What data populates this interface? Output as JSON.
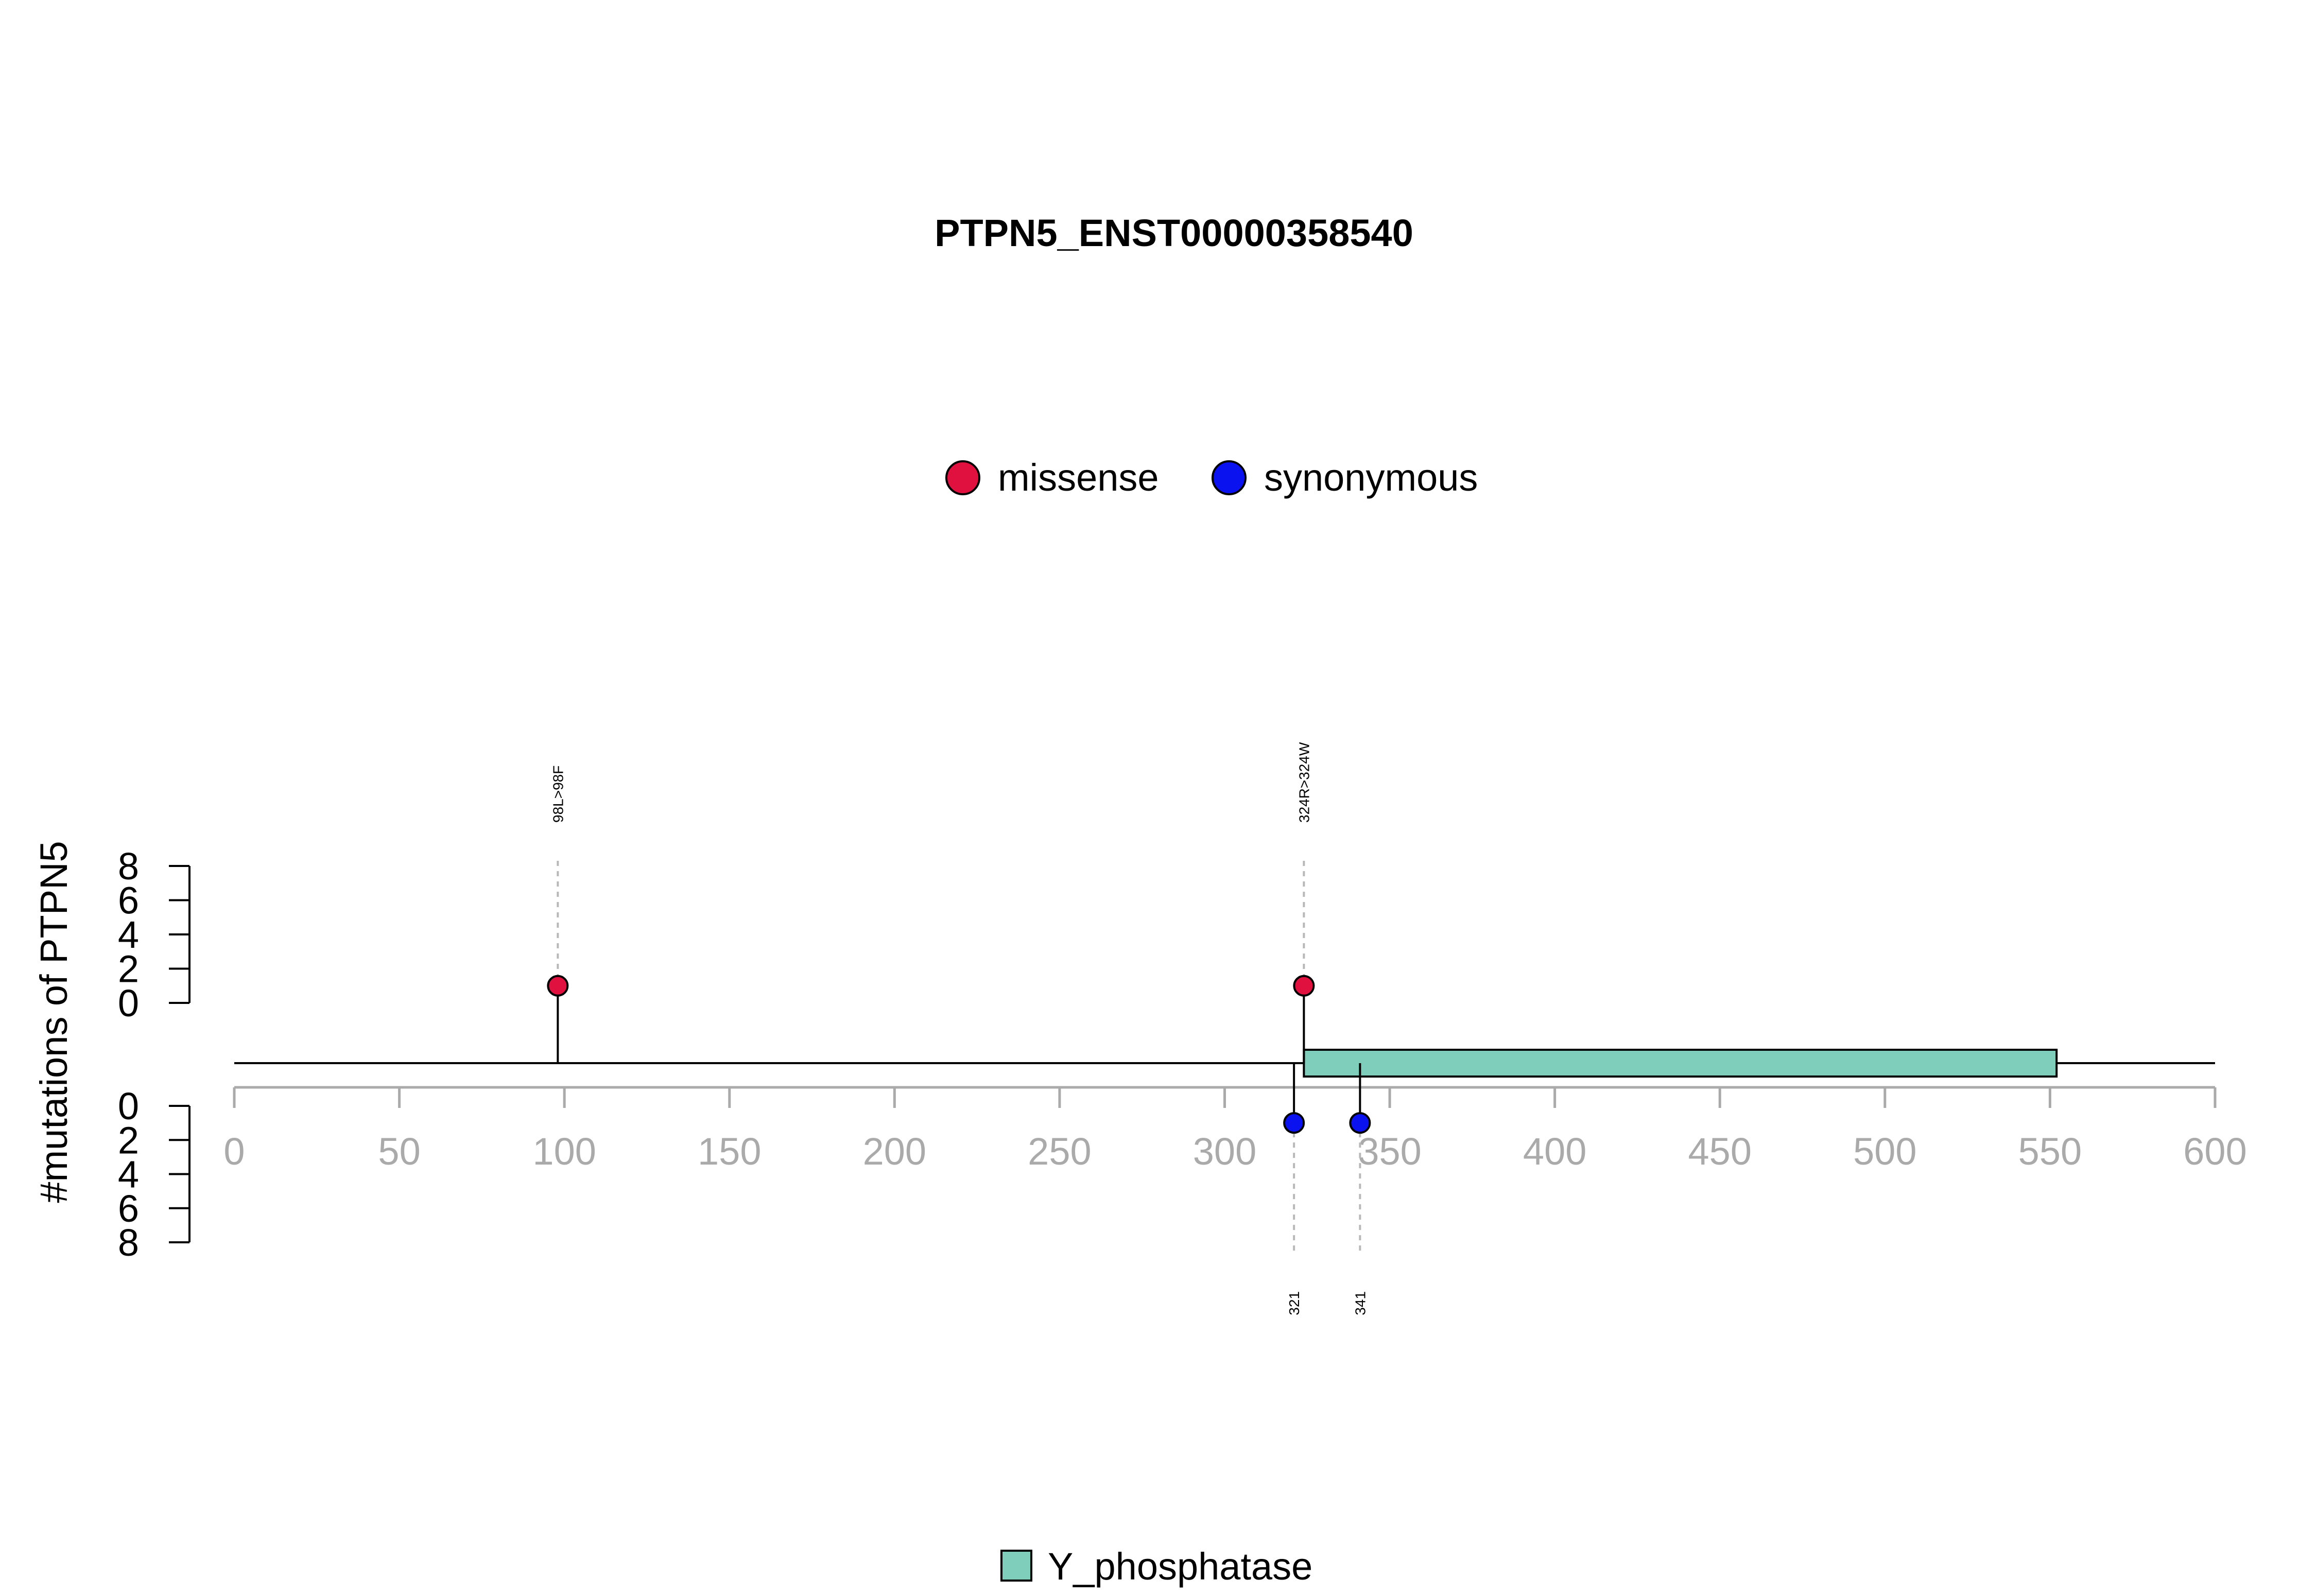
{
  "chart_data": {
    "type": "lollipop",
    "title": "PTPN5_ENST00000358540",
    "ylabel": "#mutations of PTPN5",
    "protein_length": 600,
    "xlim": [
      0,
      600
    ],
    "x_ticks": [
      0,
      50,
      100,
      150,
      200,
      250,
      300,
      350,
      400,
      450,
      500,
      550,
      600
    ],
    "y_ticks_upper": [
      0,
      2,
      4,
      6,
      8
    ],
    "y_ticks_lower": [
      0,
      2,
      4,
      6,
      8
    ],
    "ylim": [
      0,
      8
    ],
    "legend_top": [
      {
        "label": "missense",
        "color": "#e0103f"
      },
      {
        "label": "synonymous",
        "color": "#0a12f0"
      }
    ],
    "mutations": [
      {
        "position": 98,
        "label": "98L>98F",
        "type": "missense",
        "count": 1,
        "side": "up"
      },
      {
        "position": 324,
        "label": "324R>324W",
        "type": "missense",
        "count": 1,
        "side": "up"
      },
      {
        "position": 321,
        "label": "321",
        "type": "synonymous",
        "count": 1,
        "side": "down"
      },
      {
        "position": 341,
        "label": "341",
        "type": "synonymous",
        "count": 1,
        "side": "down"
      }
    ],
    "domains": [
      {
        "name": "Y_phosphatase",
        "start": 324,
        "end": 552,
        "color": "#7fcdbb"
      }
    ],
    "legend_bottom": [
      {
        "label": "Y_phosphatase",
        "color": "#7fcdbb"
      }
    ]
  }
}
